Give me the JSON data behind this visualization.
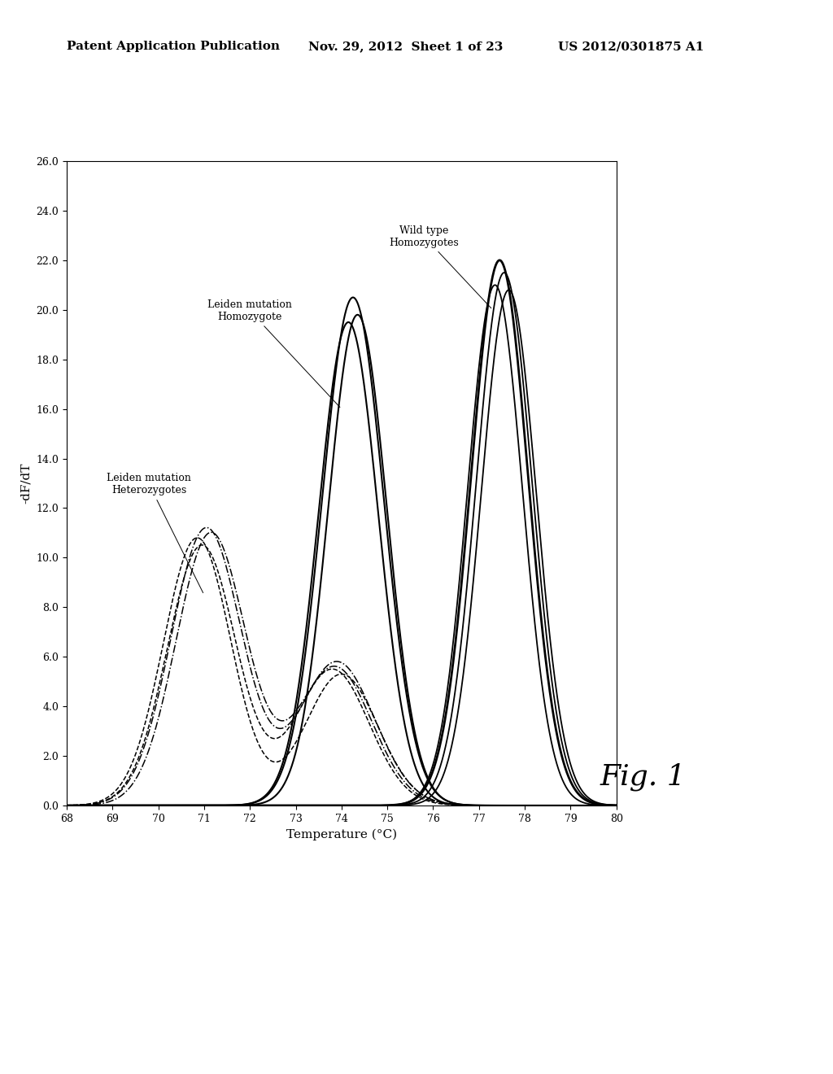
{
  "header_left": "Patent Application Publication",
  "header_mid": "Nov. 29, 2012  Sheet 1 of 23",
  "header_right": "US 2012/0301875 A1",
  "fig_label": "Fig. 1",
  "temp_label": "Temperature (°C)",
  "dfdt_label": "-dF/dT",
  "xmin": 68,
  "xmax": 80,
  "ymin": 0.0,
  "ymax": 26.0,
  "xticks": [
    68,
    69,
    70,
    71,
    72,
    73,
    74,
    75,
    76,
    77,
    78,
    79,
    80
  ],
  "yticks": [
    0.0,
    2.0,
    4.0,
    6.0,
    8.0,
    10.0,
    12.0,
    14.0,
    16.0,
    18.0,
    20.0,
    22.0,
    24.0,
    26.0
  ],
  "label_wild": "Wild type\nHomozygotes",
  "label_leiden_homo": "Leiden mutation\nHomozygote",
  "label_leiden_hetero": "Leiden mutation\nHeterozygotes",
  "background_color": "#ffffff",
  "line_color": "#000000",
  "font_size_header": 11,
  "font_size_tick": 9,
  "font_size_axlabel": 11,
  "font_size_annot": 9,
  "font_size_fig": 26
}
